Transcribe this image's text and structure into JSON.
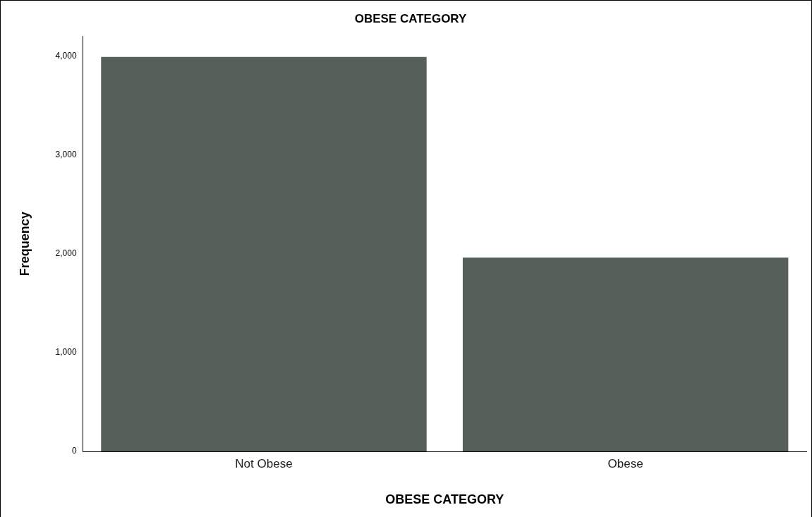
{
  "chart_data": {
    "type": "bar",
    "title": "OBESE CATEGORY",
    "xlabel": "OBESE CATEGORY",
    "ylabel": "Frequency",
    "categories": [
      "Not Obese",
      "Obese"
    ],
    "values": [
      3990,
      1960
    ],
    "color": "#566059",
    "ylim": [
      0,
      4200
    ],
    "yticks": [
      {
        "value": 0,
        "label": "0"
      },
      {
        "value": 1000,
        "label": "1,000"
      },
      {
        "value": 2000,
        "label": "2,000"
      },
      {
        "value": 3000,
        "label": "3,000"
      },
      {
        "value": 4000,
        "label": "4,000"
      }
    ],
    "grid": false,
    "legend": false
  }
}
